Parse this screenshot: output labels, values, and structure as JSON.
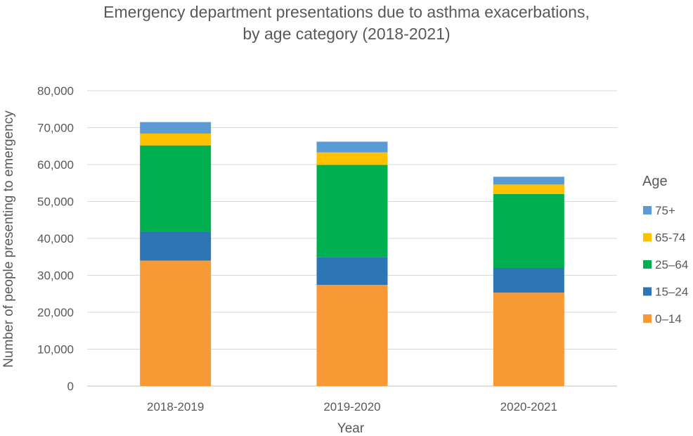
{
  "chart_data": {
    "type": "bar",
    "stacked": true,
    "title_lines": [
      "Emergency department presentations due to asthma exacerbations,",
      "by age category (2018-2021)"
    ],
    "xlabel": "Year",
    "ylabel": "Number of people presenting to emergency",
    "ylim": [
      0,
      80000
    ],
    "yticks": [
      0,
      10000,
      20000,
      30000,
      40000,
      50000,
      60000,
      70000,
      80000
    ],
    "ytick_labels": [
      "0",
      "10,000",
      "20,000",
      "30,000",
      "40,000",
      "50,000",
      "60,000",
      "70,000",
      "80,000"
    ],
    "categories": [
      "2018-2019",
      "2019-2020",
      "2020-2021"
    ],
    "grid": true,
    "legend_title": "Age",
    "legend_position": "right",
    "series": [
      {
        "name": "0–14",
        "color": "#F79A35",
        "values": [
          34000,
          27400,
          25300
        ]
      },
      {
        "name": "15–24",
        "color": "#2E75B6",
        "values": [
          7800,
          7600,
          6700
        ]
      },
      {
        "name": "25–64",
        "color": "#00B050",
        "values": [
          23400,
          24900,
          20000
        ]
      },
      {
        "name": "65-74",
        "color": "#FFC000",
        "values": [
          3200,
          3400,
          2600
        ]
      },
      {
        "name": "75+",
        "color": "#5B9BD5",
        "values": [
          3100,
          2900,
          2100
        ]
      }
    ]
  }
}
